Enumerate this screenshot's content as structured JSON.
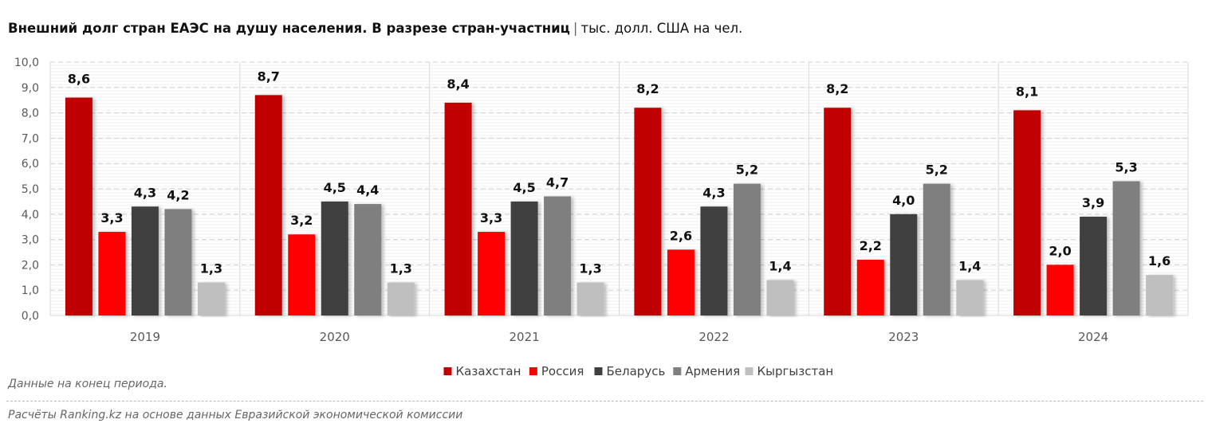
{
  "title": {
    "main": "Внешний долг стран ЕАЭС на душу населения. В разрезе стран-участниц",
    "separator": "|",
    "unit": "тыс. долл. США на чел."
  },
  "notes": {
    "period": "Данные на конец периода.",
    "source": "Расчёты Ranking.kz на основе данных Евразийской экономической комиссии"
  },
  "chart_data": {
    "type": "bar",
    "title": "Внешний долг стран ЕАЭС на душу населения. В разрезе стран-участниц",
    "ylabel": "тыс. долл. США на чел.",
    "xlabel": "",
    "ylim": [
      0,
      10
    ],
    "yticks": [
      "0,0",
      "1,0",
      "2,0",
      "3,0",
      "4,0",
      "5,0",
      "6,0",
      "7,0",
      "8,0",
      "9,0",
      "10,0"
    ],
    "grid": true,
    "legend": "bottom",
    "categories": [
      "2019",
      "2020",
      "2021",
      "2022",
      "2023",
      "2024"
    ],
    "series": [
      {
        "name": "Казахстан",
        "color": "#c00000",
        "values": [
          8.6,
          8.7,
          8.4,
          8.2,
          8.2,
          8.1
        ]
      },
      {
        "name": "Россия",
        "color": "#ff0000",
        "values": [
          3.3,
          3.2,
          3.3,
          2.6,
          2.2,
          2.0
        ]
      },
      {
        "name": "Беларусь",
        "color": "#404040",
        "values": [
          4.3,
          4.5,
          4.5,
          4.3,
          4.0,
          3.9
        ]
      },
      {
        "name": "Армения",
        "color": "#7f7f7f",
        "values": [
          4.2,
          4.4,
          4.7,
          5.2,
          5.2,
          5.3
        ]
      },
      {
        "name": "Кыргызстан",
        "color": "#bfbfbf",
        "values": [
          1.3,
          1.3,
          1.3,
          1.4,
          1.4,
          1.6
        ]
      }
    ]
  }
}
